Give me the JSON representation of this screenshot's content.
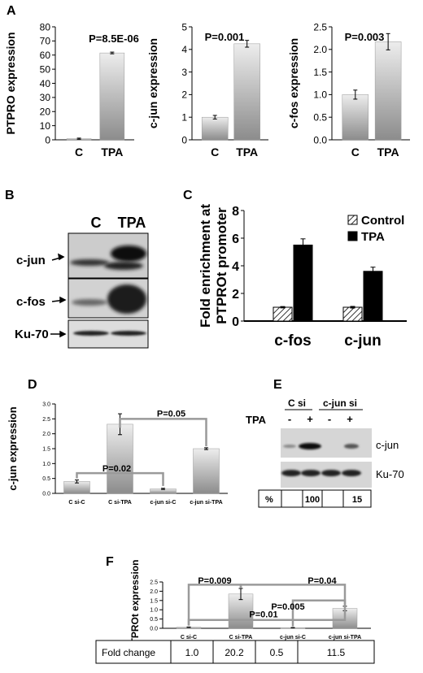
{
  "panels": {
    "A": "A",
    "B": "B",
    "C": "C",
    "D": "D",
    "E": "E",
    "F": "F"
  },
  "colors": {
    "bar_light": "#ededed",
    "bar_dark": "#8c8c8c",
    "black": "#000000",
    "blot_bg": "#d4d4d4"
  },
  "blot_B": {
    "lanes": [
      "C",
      "TPA"
    ],
    "rows": [
      "c-jun",
      "c-fos",
      "Ku-70"
    ]
  },
  "blot_E": {
    "groups": [
      "C si",
      "c-jun si"
    ],
    "tpa_label": "TPA",
    "tpa_marks": [
      "-",
      "+",
      "-",
      "+"
    ],
    "rows": [
      "c-jun",
      "Ku-70"
    ],
    "pct_cells": [
      "%",
      "",
      "100",
      "",
      "15"
    ]
  },
  "table_F": {
    "cells": [
      "Fold change",
      "1.0",
      "20.2",
      "0.5",
      "11.5"
    ]
  },
  "chart_data": [
    {
      "panel": "A1",
      "type": "bar",
      "categories": [
        "C",
        "TPA"
      ],
      "values": [
        0.8,
        61.5
      ],
      "errors": [
        0.4,
        0.6
      ],
      "ylabel": "PTPRO expression",
      "ylim": [
        0,
        80
      ],
      "yticks": [
        "0",
        "10",
        "20",
        "30",
        "40",
        "50",
        "60",
        "70",
        "80"
      ],
      "annotations": [
        "P=8.5E-06"
      ]
    },
    {
      "panel": "A2",
      "type": "bar",
      "categories": [
        "C",
        "TPA"
      ],
      "values": [
        1.0,
        4.25
      ],
      "errors": [
        0.08,
        0.15
      ],
      "ylabel": "c-jun expression",
      "ylim": [
        0,
        5
      ],
      "yticks": [
        "0",
        "1",
        "2",
        "3",
        "4",
        "5"
      ],
      "annotations": [
        "P=0.001"
      ]
    },
    {
      "panel": "A3",
      "type": "bar",
      "categories": [
        "C",
        "TPA"
      ],
      "values": [
        1.0,
        2.17
      ],
      "errors": [
        0.1,
        0.18
      ],
      "ylabel": "c-fos expression",
      "ylim": [
        0,
        2.5
      ],
      "yticks": [
        "0.0",
        "0.5",
        "1.0",
        "1.5",
        "2.0",
        "2.5"
      ],
      "annotations": [
        "P=0.003"
      ]
    },
    {
      "panel": "C",
      "type": "bar",
      "categories": [
        "c-fos",
        "c-jun"
      ],
      "series": [
        {
          "name": "Control",
          "values": [
            1.0,
            1.0
          ],
          "errors": [
            0.05,
            0.06
          ]
        },
        {
          "name": "TPA",
          "values": [
            5.5,
            3.6
          ],
          "errors": [
            0.45,
            0.3
          ]
        }
      ],
      "ylabel": "Fold enrichment at PTPROt promoter",
      "ylim": [
        0,
        8
      ],
      "yticks": [
        "0",
        "2",
        "4",
        "6",
        "8"
      ],
      "legend": "top-right"
    },
    {
      "panel": "D",
      "type": "bar",
      "categories": [
        "C si-C",
        "C si-TPA",
        "c-jun si-C",
        "c-jun si-TPA"
      ],
      "values": [
        0.4,
        2.32,
        0.15,
        1.5
      ],
      "errors": [
        0.05,
        0.35,
        0.02,
        0.03
      ],
      "ylabel": "c-jun expression",
      "ylim": [
        0,
        3.0
      ],
      "yticks": [
        "0.0",
        "0.5",
        "1.0",
        "1.5",
        "2.0",
        "2.5",
        "3.0"
      ],
      "annotations": [
        "P=0.02",
        "P=0.05"
      ]
    },
    {
      "panel": "F",
      "type": "bar",
      "categories": [
        "C si-C",
        "C si-TPA",
        "c-jun si-C",
        "c-jun si-TPA"
      ],
      "values": [
        0.06,
        1.85,
        0.03,
        1.07
      ],
      "errors": [
        0.01,
        0.3,
        0.01,
        0.12
      ],
      "ylabel": "PTPROt expression",
      "ylim": [
        0,
        2.5
      ],
      "yticks": [
        "0.0",
        "0.5",
        "1.0",
        "1.5",
        "2.0",
        "2.5"
      ],
      "annotations": [
        "P=0.009",
        "P=0.04",
        "P=0.01",
        "P=0.005"
      ]
    }
  ]
}
